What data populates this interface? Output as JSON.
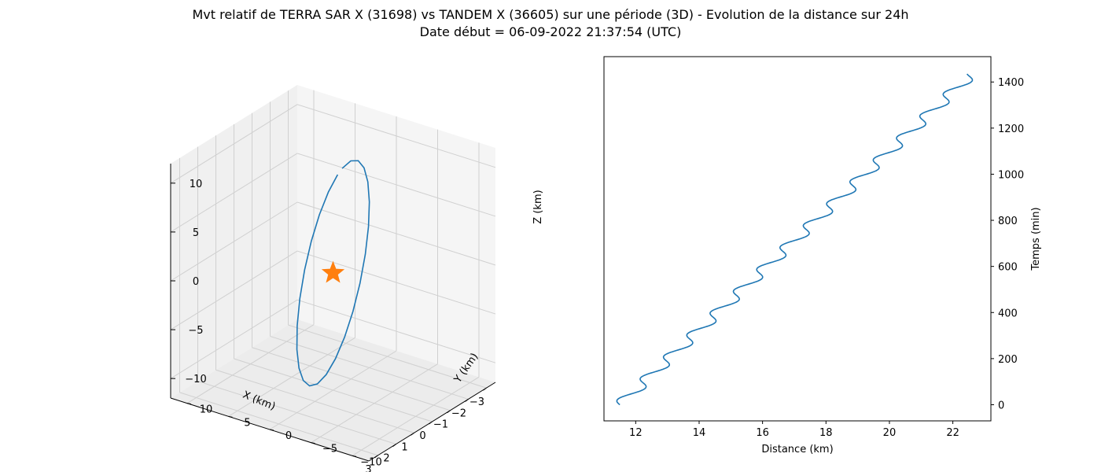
{
  "figure": {
    "title_line1": "Mvt relatif de TERRA SAR X (31698) vs TANDEM X (36605) sur une période (3D) - Evolution de la distance sur 24h",
    "title_line2": "Date début = 06-09-2022 21:37:54 (UTC)"
  },
  "colors": {
    "series": "#1f77b4",
    "marker": "#ff7f0e",
    "pane": "#f2f2f2",
    "grid": "#d0d0d0"
  },
  "chart_data": [
    {
      "type": "line",
      "projection": "3d",
      "xlabel": "X (km)",
      "ylabel": "Y (km)",
      "zlabel": "Z (km)",
      "x_ticks": [
        -3,
        -2,
        -1,
        0,
        1,
        2,
        3
      ],
      "y_ticks": [
        -10,
        -5,
        0,
        5,
        10
      ],
      "z_ticks": [
        -10,
        -5,
        0,
        5,
        10
      ],
      "xlim": [
        -3.5,
        3.5
      ],
      "ylim": [
        -12,
        12
      ],
      "zlim": [
        -12,
        12
      ],
      "grid": true,
      "orbit": {
        "description_points": 24,
        "x_amplitude": 3.2,
        "y_amplitude": 11,
        "z_amplitude": 11
      },
      "marker": {
        "shape": "star",
        "x": 0,
        "y": 0,
        "z": 0
      }
    },
    {
      "type": "line",
      "xlabel": "Distance (km)",
      "ylabel": "Temps (min)",
      "xlim": [
        11,
        23.2
      ],
      "ylim": [
        -70,
        1510
      ],
      "x_ticks": [
        12,
        14,
        16,
        18,
        20,
        22
      ],
      "y_ticks": [
        0,
        200,
        400,
        600,
        800,
        1000,
        1200,
        1400
      ],
      "grid": false,
      "y_axis_position": "right",
      "series": [
        {
          "x_start": 11.5,
          "x_end": 22.6,
          "y_start": 0,
          "y_end": 1435,
          "oscillation_period_min": 95,
          "oscillation_amplitude_km": 0.25
        }
      ]
    }
  ]
}
